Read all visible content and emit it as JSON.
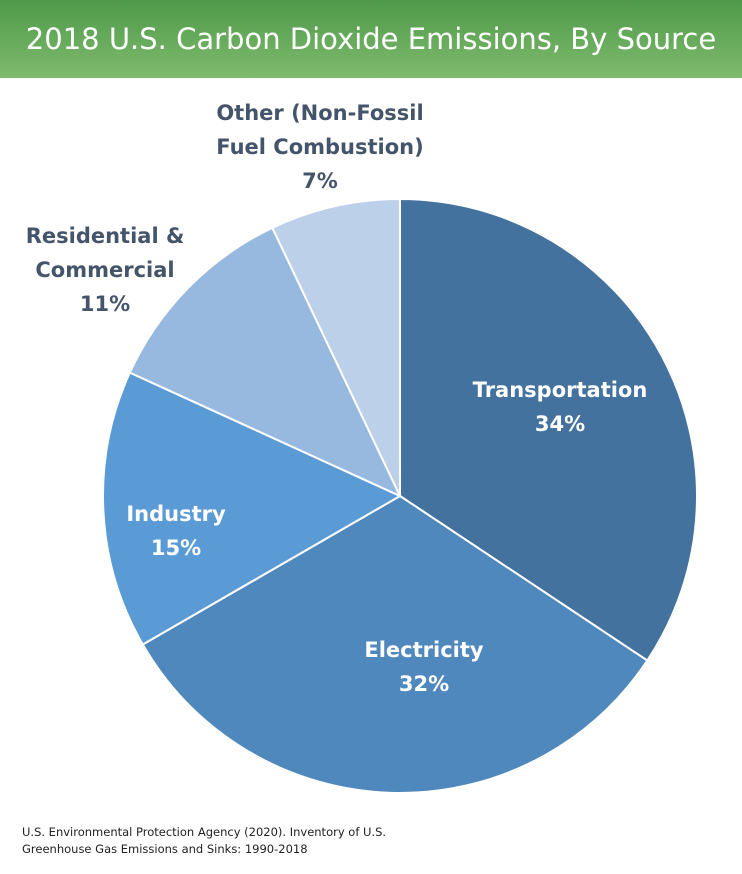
{
  "chart_data": {
    "type": "pie",
    "title": "2018 U.S. Carbon Dioxide Emissions, By Source",
    "categories": [
      "Transportation",
      "Electricity",
      "Industry",
      "Residential & Commercial",
      "Other (Non-Fossil Fuel Combustion)"
    ],
    "values": [
      34,
      32,
      15,
      11,
      7
    ],
    "value_labels": [
      "34%",
      "32%",
      "15%",
      "11%",
      "7%"
    ],
    "colors": [
      "#44729f",
      "#4f88bd",
      "#5b9bd5",
      "#98b9df",
      "#bdd0ea"
    ],
    "source": "U.S. Environmental Protection Agency (2020). Inventory of U.S. Greenhouse Gas Emissions and Sinks: 1990-2018"
  }
}
